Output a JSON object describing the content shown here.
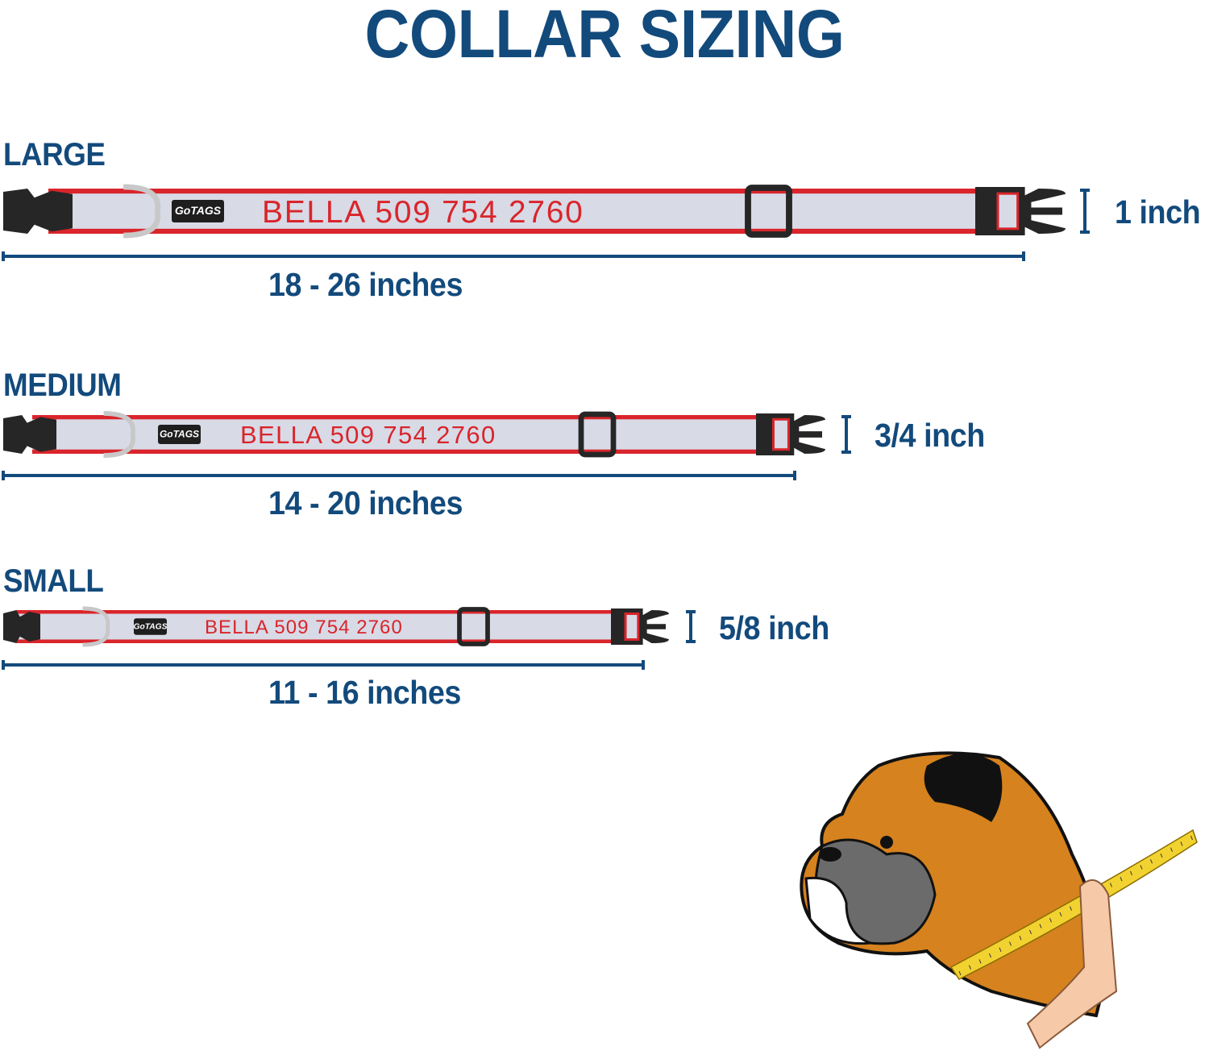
{
  "title": "COLLAR SIZING",
  "colors": {
    "brand_blue": "#134a7c",
    "strap_red": "#d9252b",
    "strap_fill": "#d8dae6",
    "hardware": "#262626",
    "tape_yellow": "#f2d230",
    "dog_fawn": "#d5821f"
  },
  "collars": [
    {
      "size": "LARGE",
      "engraving": "BELLA 509 754 2760",
      "logo": "GoTAGS",
      "width": "1 inch",
      "range": "18 - 26 inches"
    },
    {
      "size": "MEDIUM",
      "engraving": "BELLA 509 754 2760",
      "logo": "GoTAGS",
      "width": "3/4 inch",
      "range": "14 - 20 inches"
    },
    {
      "size": "SMALL",
      "engraving": "BELLA 509 754 2760",
      "logo": "GoTAGS",
      "width": "5/8 inch",
      "range": "11 - 16 inches"
    }
  ],
  "illustration": "boxer-dog-neck-measurement"
}
